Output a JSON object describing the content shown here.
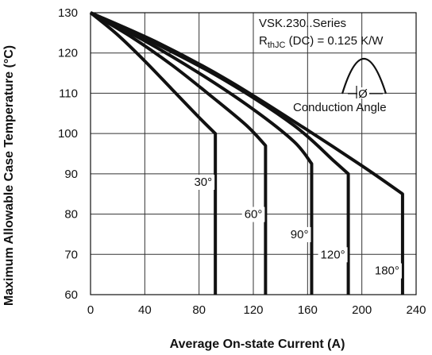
{
  "chart_data": {
    "type": "line",
    "title": "",
    "xlabel": "Average On-state Current (A)",
    "ylabel": "Maximum Allowable Case Temperature (°C)",
    "xlim": [
      0,
      240
    ],
    "ylim": [
      60,
      130
    ],
    "x_ticks": [
      "0",
      "40",
      "80",
      "120",
      "160",
      "200",
      "240"
    ],
    "y_ticks": [
      "60",
      "70",
      "80",
      "90",
      "100",
      "110",
      "120",
      "130"
    ],
    "grid": true,
    "annotation": {
      "line1": "VSK.230..Series",
      "line2_main": "R",
      "line2_sub": "thJC",
      "line2_rest": " (DC) = 0.125 K/W",
      "inset_symbol": "Ø",
      "inset_label": "Conduction Angle"
    },
    "series": [
      {
        "label": "30°",
        "points": [
          [
            0,
            130
          ],
          [
            20,
            124.5
          ],
          [
            40,
            118
          ],
          [
            60,
            111
          ],
          [
            80,
            104
          ],
          [
            92,
            100
          ],
          [
            92,
            60
          ]
        ]
      },
      {
        "label": "60°",
        "points": [
          [
            0,
            130
          ],
          [
            30,
            124
          ],
          [
            60,
            117
          ],
          [
            90,
            109
          ],
          [
            115,
            102
          ],
          [
            129,
            97
          ],
          [
            129,
            60
          ]
        ]
      },
      {
        "label": "90°",
        "points": [
          [
            0,
            130
          ],
          [
            40,
            123
          ],
          [
            80,
            115
          ],
          [
            120,
            106
          ],
          [
            150,
            98
          ],
          [
            163,
            92.5
          ],
          [
            163,
            60
          ]
        ]
      },
      {
        "label": "120°",
        "points": [
          [
            0,
            130
          ],
          [
            50,
            122
          ],
          [
            100,
            113
          ],
          [
            150,
            102
          ],
          [
            180,
            93
          ],
          [
            190,
            90
          ],
          [
            190,
            60
          ]
        ]
      },
      {
        "label": "180°",
        "points": [
          [
            0,
            130
          ],
          [
            50,
            122.5
          ],
          [
            100,
            113.5
          ],
          [
            150,
            103
          ],
          [
            200,
            92
          ],
          [
            230,
            85
          ],
          [
            230,
            60
          ]
        ]
      }
    ]
  }
}
